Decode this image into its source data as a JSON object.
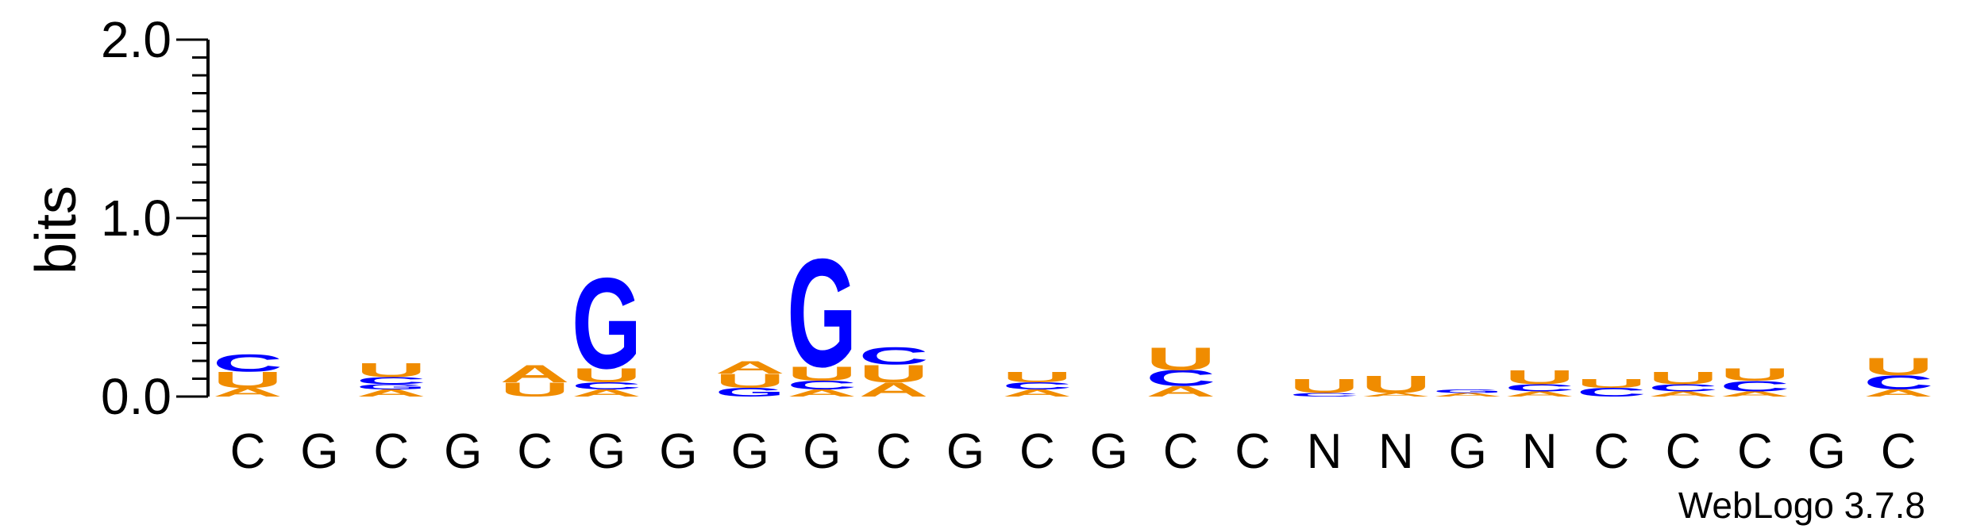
{
  "chart_data": {
    "type": "sequence-logo",
    "ylabel": "bits",
    "ylim": [
      0,
      2.0
    ],
    "yticks": [
      "0.0",
      "1.0",
      "2.0"
    ],
    "colors": {
      "A": "#f08c00",
      "U": "#f08c00",
      "G": "#0000ff",
      "C": "#0000ff"
    },
    "positions": [
      {
        "label": "C",
        "stack": [
          {
            "letter": "A",
            "bits": 0.05
          },
          {
            "letter": "U",
            "bits": 0.09
          },
          {
            "letter": "C",
            "bits": 0.1
          }
        ]
      },
      {
        "label": "G",
        "stack": []
      },
      {
        "label": "C",
        "stack": [
          {
            "letter": "A",
            "bits": 0.04
          },
          {
            "letter": "G",
            "bits": 0.03
          },
          {
            "letter": "C",
            "bits": 0.04
          },
          {
            "letter": "U",
            "bits": 0.08
          }
        ]
      },
      {
        "label": "G",
        "stack": []
      },
      {
        "label": "C",
        "stack": [
          {
            "letter": "U",
            "bits": 0.08
          },
          {
            "letter": "A",
            "bits": 0.1
          }
        ]
      },
      {
        "label": "G",
        "stack": [
          {
            "letter": "A",
            "bits": 0.04
          },
          {
            "letter": "C",
            "bits": 0.04
          },
          {
            "letter": "U",
            "bits": 0.08
          },
          {
            "letter": "G",
            "bits": 0.52
          }
        ]
      },
      {
        "label": "G",
        "stack": []
      },
      {
        "label": "G",
        "stack": [
          {
            "letter": "G",
            "bits": 0.05
          },
          {
            "letter": "U",
            "bits": 0.08
          },
          {
            "letter": "A",
            "bits": 0.07
          }
        ]
      },
      {
        "label": "G",
        "stack": [
          {
            "letter": "A",
            "bits": 0.04
          },
          {
            "letter": "C",
            "bits": 0.05
          },
          {
            "letter": "U",
            "bits": 0.08
          },
          {
            "letter": "G",
            "bits": 0.62
          }
        ]
      },
      {
        "label": "C",
        "stack": [
          {
            "letter": "A",
            "bits": 0.08
          },
          {
            "letter": "U",
            "bits": 0.1
          },
          {
            "letter": "C",
            "bits": 0.1
          }
        ]
      },
      {
        "label": "G",
        "stack": []
      },
      {
        "label": "C",
        "stack": [
          {
            "letter": "A",
            "bits": 0.04
          },
          {
            "letter": "C",
            "bits": 0.04
          },
          {
            "letter": "U",
            "bits": 0.06
          }
        ]
      },
      {
        "label": "G",
        "stack": []
      },
      {
        "label": "C",
        "stack": [
          {
            "letter": "A",
            "bits": 0.06
          },
          {
            "letter": "C",
            "bits": 0.09
          },
          {
            "letter": "U",
            "bits": 0.13
          }
        ]
      },
      {
        "label": "C",
        "stack": []
      },
      {
        "label": "N",
        "stack": [
          {
            "letter": "C",
            "bits": 0.02
          },
          {
            "letter": "U",
            "bits": 0.08
          }
        ]
      },
      {
        "label": "N",
        "stack": [
          {
            "letter": "A",
            "bits": 0.02
          },
          {
            "letter": "U",
            "bits": 0.1
          }
        ]
      },
      {
        "label": "G",
        "stack": [
          {
            "letter": "A",
            "bits": 0.02
          },
          {
            "letter": "G",
            "bits": 0.02
          }
        ]
      },
      {
        "label": "N",
        "stack": [
          {
            "letter": "A",
            "bits": 0.03
          },
          {
            "letter": "C",
            "bits": 0.04
          },
          {
            "letter": "U",
            "bits": 0.08
          }
        ]
      },
      {
        "label": "C",
        "stack": [
          {
            "letter": "C",
            "bits": 0.05
          },
          {
            "letter": "U",
            "bits": 0.05
          }
        ]
      },
      {
        "label": "C",
        "stack": [
          {
            "letter": "A",
            "bits": 0.03
          },
          {
            "letter": "C",
            "bits": 0.04
          },
          {
            "letter": "U",
            "bits": 0.07
          }
        ]
      },
      {
        "label": "C",
        "stack": [
          {
            "letter": "A",
            "bits": 0.03
          },
          {
            "letter": "C",
            "bits": 0.06
          },
          {
            "letter": "U",
            "bits": 0.07
          }
        ]
      },
      {
        "label": "G",
        "stack": []
      },
      {
        "label": "C",
        "stack": [
          {
            "letter": "A",
            "bits": 0.04
          },
          {
            "letter": "C",
            "bits": 0.08
          },
          {
            "letter": "U",
            "bits": 0.1
          }
        ]
      }
    ]
  },
  "footer": "WebLogo 3.7.8"
}
